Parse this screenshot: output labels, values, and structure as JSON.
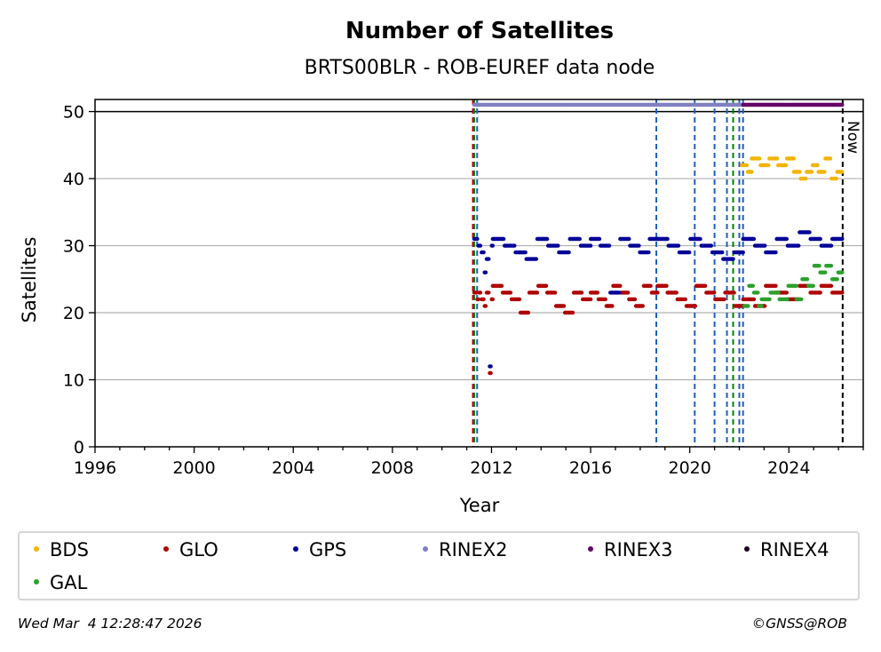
{
  "chart_data": {
    "type": "scatter",
    "title": "Number of Satellites",
    "subtitle": "BRTS00BLR - ROB-EUREF data node",
    "xlabel": "Year",
    "ylabel": "Satellites",
    "xlim": [
      1996,
      2027.0
    ],
    "ylim": [
      0,
      51.8
    ],
    "xticks": [
      1996,
      2000,
      2004,
      2008,
      2012,
      2016,
      2020,
      2024
    ],
    "yticks": [
      0,
      10,
      20,
      30,
      40,
      50
    ],
    "grid": "horizontal",
    "now_label": "Now",
    "now_x": 2026.17,
    "max_line_y": 50,
    "event_lines": [
      {
        "x": 2011.25,
        "color": "#b30000"
      },
      {
        "x": 2011.3,
        "color": "#008000"
      },
      {
        "x": 2011.42,
        "color": "#1f5fbf"
      },
      {
        "x": 2018.65,
        "color": "#1f5fbf"
      },
      {
        "x": 2020.2,
        "color": "#1f5fbf"
      },
      {
        "x": 2021.0,
        "color": "#1f5fbf"
      },
      {
        "x": 2021.5,
        "color": "#1f5fbf"
      },
      {
        "x": 2021.75,
        "color": "#008000"
      },
      {
        "x": 2022.0,
        "color": "#1f5fbf"
      },
      {
        "x": 2022.15,
        "color": "#1f5fbf"
      }
    ],
    "series": [
      {
        "name": "BDS",
        "color": "#f2b400",
        "segments": [
          {
            "x0": 2022.1,
            "x1": 2022.5,
            "values": [
              42,
              41
            ]
          },
          {
            "x0": 2022.5,
            "x1": 2024.2,
            "values": [
              43,
              42,
              43,
              42,
              43
            ]
          },
          {
            "x0": 2024.2,
            "x1": 2026.15,
            "values": [
              41,
              40,
              41,
              42,
              41,
              43,
              40,
              41
            ]
          }
        ]
      },
      {
        "name": "GLO",
        "color": "#b00000",
        "segments": [
          {
            "x0": 2011.3,
            "x1": 2011.55,
            "values": [
              23,
              22,
              23
            ]
          },
          {
            "x0": 2011.6,
            "x1": 2012.05,
            "values": [
              22,
              21,
              23,
              11,
              22
            ]
          },
          {
            "x0": 2012.05,
            "x1": 2016.0,
            "values": [
              24,
              23,
              22,
              20,
              23,
              24,
              23,
              21,
              20,
              23,
              22
            ]
          },
          {
            "x0": 2016.0,
            "x1": 2018.7,
            "values": [
              23,
              22,
              21,
              24,
              23,
              22,
              21,
              24,
              23
            ]
          },
          {
            "x0": 2018.7,
            "x1": 2022.15,
            "values": [
              24,
              23,
              22,
              21,
              24,
              23,
              22,
              23,
              21
            ]
          },
          {
            "x0": 2022.15,
            "x1": 2026.15,
            "values": [
              22,
              21,
              24,
              23,
              22,
              24,
              23,
              24,
              23
            ]
          }
        ]
      },
      {
        "name": "GPS",
        "color": "#000099",
        "segments": [
          {
            "x0": 2011.3,
            "x1": 2011.55,
            "values": [
              31,
              30
            ]
          },
          {
            "x0": 2011.6,
            "x1": 2012.05,
            "values": [
              29,
              26,
              28,
              12,
              30
            ]
          },
          {
            "x0": 2012.05,
            "x1": 2016.0,
            "values": [
              31,
              30,
              29,
              28,
              31,
              30,
              29,
              31,
              30
            ]
          },
          {
            "x0": 2016.0,
            "x1": 2018.7,
            "values": [
              31,
              30,
              23,
              31,
              30,
              29,
              31
            ]
          },
          {
            "x0": 2018.7,
            "x1": 2022.15,
            "values": [
              31,
              30,
              29,
              31,
              30,
              29,
              28,
              29
            ]
          },
          {
            "x0": 2022.15,
            "x1": 2026.15,
            "values": [
              31,
              30,
              29,
              31,
              30,
              32,
              31,
              30,
              31
            ]
          }
        ]
      },
      {
        "name": "RINEX2",
        "color": "#8080c0",
        "segments": [
          {
            "x0": 2011.3,
            "x1": 2022.15,
            "values": [
              51
            ]
          }
        ]
      },
      {
        "name": "RINEX3",
        "color": "#660066",
        "segments": [
          {
            "x0": 2022.15,
            "x1": 2026.15,
            "values": [
              51
            ]
          }
        ]
      },
      {
        "name": "RINEX4",
        "color": "#1a0020",
        "segments": []
      },
      {
        "name": "GAL",
        "color": "#2ca02c",
        "segments": [
          {
            "x0": 2022.2,
            "x1": 2022.9,
            "values": [
              21,
              24,
              23,
              21
            ]
          },
          {
            "x0": 2022.9,
            "x1": 2024.3,
            "values": [
              22,
              23,
              22,
              24
            ]
          },
          {
            "x0": 2024.3,
            "x1": 2026.15,
            "values": [
              22,
              25,
              24,
              27,
              26,
              27,
              25,
              26
            ]
          }
        ]
      }
    ]
  },
  "legend": [
    {
      "label": "BDS",
      "color": "#f2b400"
    },
    {
      "label": "GLO",
      "color": "#b00000"
    },
    {
      "label": "GPS",
      "color": "#000099"
    },
    {
      "label": "RINEX2",
      "color": "#8080c0"
    },
    {
      "label": "RINEX3",
      "color": "#660066"
    },
    {
      "label": "RINEX4",
      "color": "#1a0020"
    },
    {
      "label": "GAL",
      "color": "#2ca02c"
    }
  ],
  "footer": {
    "timestamp": "Wed Mar  4 12:28:47 2026",
    "credit": "©GNSS@ROB"
  }
}
